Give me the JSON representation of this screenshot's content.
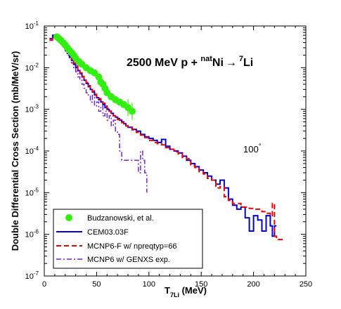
{
  "chart_data": {
    "type": "line",
    "xlabel": {
      "main": "T",
      "sub": "7Li",
      "unit": " (MeV)"
    },
    "ylabel": "Double Differential Cross Section (mb/MeV/sr)",
    "title": {
      "part1": "2500 MeV p + ",
      "sup1": "nat",
      "part2": "Ni",
      "arrow": "→",
      "sup2": "7",
      "part3": "Li"
    },
    "angle_label": {
      "value": "100",
      "degree": "°"
    },
    "xlim": [
      0,
      250
    ],
    "ylim": [
      1e-07,
      0.1
    ],
    "yscale": "log",
    "x_ticks": [
      "0",
      "50",
      "100",
      "150",
      "200",
      "250"
    ],
    "y_ticks": [
      {
        "base": "10",
        "exp": "-7"
      },
      {
        "base": "10",
        "exp": "-6"
      },
      {
        "base": "10",
        "exp": "-5"
      },
      {
        "base": "10",
        "exp": "-4"
      },
      {
        "base": "10",
        "exp": "-3"
      },
      {
        "base": "10",
        "exp": "-2"
      },
      {
        "base": "10",
        "exp": "-1"
      }
    ],
    "grid": false,
    "legend_position": "bottom-left",
    "colors": {
      "budz": "#33ee11",
      "cem": "#0000cc",
      "mcnpf": "#ee0000",
      "genxs": "#7722cc"
    },
    "series": [
      {
        "name": "Budzanowski, et al.",
        "kind": "markers",
        "points": [
          [
            12,
            0.055
          ],
          [
            14,
            0.05
          ],
          [
            16,
            0.045
          ],
          [
            18,
            0.04
          ],
          [
            20,
            0.035
          ],
          [
            22,
            0.03
          ],
          [
            24,
            0.026
          ],
          [
            26,
            0.023
          ],
          [
            28,
            0.02
          ],
          [
            30,
            0.017
          ],
          [
            33,
            0.014
          ],
          [
            36,
            0.012
          ],
          [
            40,
            0.01
          ],
          [
            44,
            0.0085
          ],
          [
            48,
            0.0075
          ],
          [
            52,
            0.006
          ],
          [
            54,
            0.0045
          ],
          [
            56,
            0.004
          ],
          [
            58,
            0.0032
          ],
          [
            60,
            0.0025
          ],
          [
            64,
            0.002
          ],
          [
            68,
            0.0017
          ],
          [
            72,
            0.0015
          ],
          [
            76,
            0.0013
          ],
          [
            80,
            0.0011
          ],
          [
            84,
            0.0009
          ]
        ]
      },
      {
        "name": "CEM03.03F",
        "kind": "step",
        "points": [
          [
            5,
            0.05
          ],
          [
            8,
            0.06
          ],
          [
            10,
            0.058
          ],
          [
            12,
            0.052
          ],
          [
            14,
            0.045
          ],
          [
            16,
            0.038
          ],
          [
            18,
            0.032
          ],
          [
            20,
            0.027
          ],
          [
            22,
            0.022
          ],
          [
            24,
            0.018
          ],
          [
            26,
            0.015
          ],
          [
            28,
            0.012
          ],
          [
            30,
            0.01
          ],
          [
            32,
            0.0085
          ],
          [
            34,
            0.0072
          ],
          [
            36,
            0.006
          ],
          [
            38,
            0.005
          ],
          [
            40,
            0.0042
          ],
          [
            42,
            0.0035
          ],
          [
            44,
            0.003
          ],
          [
            46,
            0.0026
          ],
          [
            48,
            0.0022
          ],
          [
            50,
            0.0019
          ],
          [
            52,
            0.0017
          ],
          [
            54,
            0.0015
          ],
          [
            56,
            0.0013
          ],
          [
            58,
            0.0011
          ],
          [
            60,
            0.001
          ],
          [
            62,
            0.0009
          ],
          [
            64,
            0.0008
          ],
          [
            66,
            0.0007
          ],
          [
            68,
            0.00065
          ],
          [
            70,
            0.0006
          ],
          [
            72,
            0.00055
          ],
          [
            74,
            0.0005
          ],
          [
            76,
            0.00045
          ],
          [
            78,
            0.0004
          ],
          [
            80,
            0.00037
          ],
          [
            84,
            0.00033
          ],
          [
            88,
            0.0003
          ],
          [
            92,
            0.00025
          ],
          [
            96,
            0.00022
          ],
          [
            100,
            0.0002
          ],
          [
            104,
            0.00018
          ],
          [
            108,
            0.00016
          ],
          [
            112,
            0.00019
          ],
          [
            116,
            0.00013
          ],
          [
            120,
            0.00011
          ],
          [
            124,
            0.0001
          ],
          [
            128,
            9e-05
          ],
          [
            132,
            7.5e-05
          ],
          [
            136,
            6e-05
          ],
          [
            140,
            5e-05
          ],
          [
            144,
            4.2e-05
          ],
          [
            148,
            3.5e-05
          ],
          [
            152,
            3e-05
          ],
          [
            156,
            2.5e-05
          ],
          [
            160,
            2e-05
          ],
          [
            164,
            1.6e-05
          ],
          [
            168,
            2e-05
          ],
          [
            172,
            1.3e-05
          ],
          [
            176,
            7e-06
          ],
          [
            180,
            5e-06
          ],
          [
            184,
            4e-06
          ],
          [
            188,
            4.5e-06
          ],
          [
            192,
            2.5e-06
          ],
          [
            196,
            1.2e-06
          ],
          [
            200,
            2.8e-06
          ],
          [
            204,
            2.2e-06
          ],
          [
            208,
            1.2e-06
          ],
          [
            212,
            2.8e-06
          ],
          [
            216,
            1.6e-06
          ],
          [
            218,
            9e-07
          ],
          [
            220,
            1.6e-06
          ],
          [
            222,
            1.6e-06
          ]
        ]
      },
      {
        "name": "MCNP6-F w/ npreqtyp=66",
        "kind": "step",
        "points": [
          [
            5,
            0.048
          ],
          [
            8,
            0.058
          ],
          [
            10,
            0.06
          ],
          [
            12,
            0.053
          ],
          [
            14,
            0.046
          ],
          [
            16,
            0.039
          ],
          [
            18,
            0.033
          ],
          [
            20,
            0.028
          ],
          [
            22,
            0.023
          ],
          [
            24,
            0.019
          ],
          [
            26,
            0.016
          ],
          [
            28,
            0.013
          ],
          [
            30,
            0.011
          ],
          [
            32,
            0.009
          ],
          [
            34,
            0.0075
          ],
          [
            36,
            0.0062
          ],
          [
            38,
            0.0052
          ],
          [
            40,
            0.0044
          ],
          [
            42,
            0.0037
          ],
          [
            44,
            0.0031
          ],
          [
            46,
            0.0027
          ],
          [
            48,
            0.0023
          ],
          [
            50,
            0.002
          ],
          [
            52,
            0.0018
          ],
          [
            54,
            0.0016
          ],
          [
            56,
            0.0014
          ],
          [
            58,
            0.0012
          ],
          [
            60,
            0.00105
          ],
          [
            62,
            0.0009
          ],
          [
            64,
            0.0008
          ],
          [
            66,
            0.0007
          ],
          [
            68,
            0.00062
          ],
          [
            70,
            0.00057
          ],
          [
            72,
            0.00052
          ],
          [
            74,
            0.00048
          ],
          [
            76,
            0.00044
          ],
          [
            78,
            0.0004
          ],
          [
            80,
            0.00036
          ],
          [
            84,
            0.00032
          ],
          [
            88,
            0.00028
          ],
          [
            92,
            0.00024
          ],
          [
            96,
            0.00021
          ],
          [
            100,
            0.00018
          ],
          [
            104,
            0.00016
          ],
          [
            108,
            0.00015
          ],
          [
            112,
            0.00014
          ],
          [
            116,
            0.00012
          ],
          [
            120,
            0.00011
          ],
          [
            124,
            9.5e-05
          ],
          [
            128,
            8.5e-05
          ],
          [
            132,
            7e-05
          ],
          [
            136,
            6.5e-05
          ],
          [
            140,
            4.5e-05
          ],
          [
            144,
            4e-05
          ],
          [
            148,
            3.2e-05
          ],
          [
            152,
            2.8e-05
          ],
          [
            156,
            2.2e-05
          ],
          [
            160,
            2e-05
          ],
          [
            164,
            1.3e-05
          ],
          [
            168,
            1.4e-05
          ],
          [
            172,
            8e-06
          ],
          [
            176,
            6.5e-06
          ],
          [
            180,
            5.5e-06
          ],
          [
            184,
            5.5e-06
          ],
          [
            188,
            4.5e-06
          ],
          [
            192,
            4.5e-06
          ],
          [
            196,
            4.2e-06
          ],
          [
            200,
            4e-06
          ],
          [
            204,
            4e-06
          ],
          [
            208,
            3.5e-06
          ],
          [
            212,
            3.2e-06
          ],
          [
            216,
            2.8e-06
          ],
          [
            218,
            5.5e-06
          ],
          [
            220,
            9e-07
          ],
          [
            222,
            7.5e-07
          ],
          [
            230,
            7.5e-07
          ]
        ]
      },
      {
        "name": "MCNP6 w/ GENXS exp.",
        "kind": "step",
        "points": [
          [
            5,
            0.045
          ],
          [
            8,
            0.055
          ],
          [
            10,
            0.058
          ],
          [
            12,
            0.052
          ],
          [
            14,
            0.045
          ],
          [
            16,
            0.038
          ],
          [
            18,
            0.03
          ],
          [
            20,
            0.025
          ],
          [
            22,
            0.02
          ],
          [
            24,
            0.016
          ],
          [
            26,
            0.013
          ],
          [
            28,
            0.01
          ],
          [
            30,
            0.008
          ],
          [
            32,
            0.006
          ],
          [
            34,
            0.005
          ],
          [
            36,
            0.004
          ],
          [
            38,
            0.0032
          ],
          [
            40,
            0.0025
          ],
          [
            42,
            0.0022
          ],
          [
            44,
            0.0015
          ],
          [
            46,
            0.0028
          ],
          [
            48,
            0.0012
          ],
          [
            50,
            0.0015
          ],
          [
            52,
            0.0009
          ],
          [
            54,
            0.0012
          ],
          [
            56,
            0.0007
          ],
          [
            58,
            0.0009
          ],
          [
            60,
            0.00055
          ],
          [
            62,
            0.0007
          ],
          [
            64,
            0.0004
          ],
          [
            66,
            0.00055
          ],
          [
            68,
            0.0003
          ],
          [
            70,
            0.00025
          ],
          [
            72,
            0.0001
          ],
          [
            74,
            6e-05
          ],
          [
            78,
            6e-05
          ],
          [
            82,
            6e-05
          ],
          [
            86,
            6e-05
          ],
          [
            90,
            3e-05
          ],
          [
            92,
            0.0001
          ],
          [
            94,
            6e-05
          ],
          [
            96,
            3e-05
          ],
          [
            98,
            1e-05
          ]
        ]
      }
    ]
  }
}
